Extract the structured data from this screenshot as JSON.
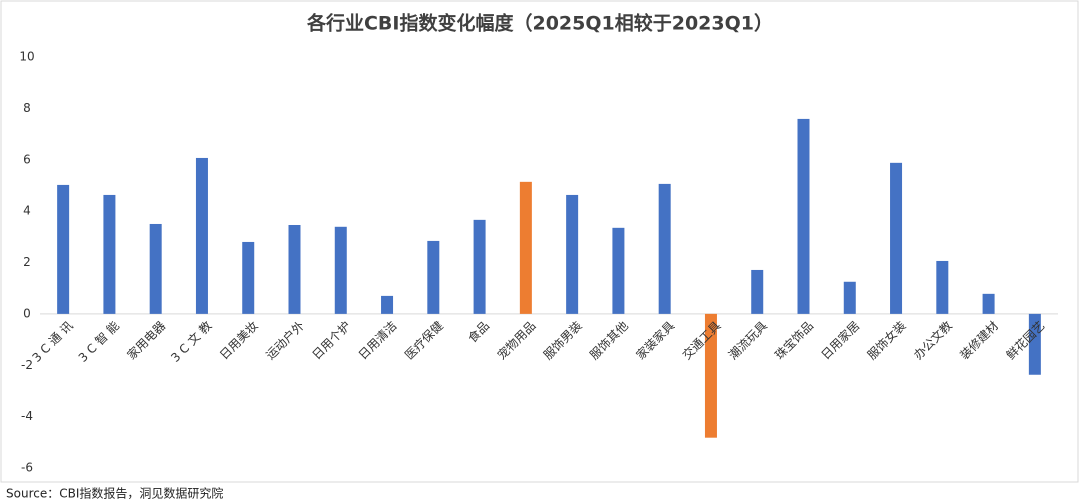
{
  "chart_data": {
    "type": "bar",
    "title": "各行业CBI指数变化幅度（2025Q1相较于2023Q1）",
    "categories": [
      "3 C 通 讯",
      "3 C 智 能",
      "家用电器",
      "3 C 文 教",
      "日用美妆",
      "运动户外",
      "日用个护",
      "日用清洁",
      "医疗保健",
      "食品",
      "宠物用品",
      "服饰男装",
      "服饰其他",
      "家装家具",
      "交通工具",
      "潮流玩具",
      "珠宝饰品",
      "日用家居",
      "服饰女装",
      "办公文教",
      "装修建材",
      "鲜花园艺"
    ],
    "values": [
      5.02,
      4.63,
      3.5,
      6.07,
      2.8,
      3.46,
      3.39,
      0.7,
      2.84,
      3.66,
      5.14,
      4.63,
      3.35,
      5.06,
      -4.82,
      1.71,
      7.59,
      1.25,
      5.88,
      2.06,
      0.78,
      -2.37
    ],
    "colors": [
      "#4472c4",
      "#4472c4",
      "#4472c4",
      "#4472c4",
      "#4472c4",
      "#4472c4",
      "#4472c4",
      "#4472c4",
      "#4472c4",
      "#4472c4",
      "#ed7d31",
      "#4472c4",
      "#4472c4",
      "#4472c4",
      "#ed7d31",
      "#4472c4",
      "#4472c4",
      "#4472c4",
      "#4472c4",
      "#4472c4",
      "#4472c4",
      "#4472c4"
    ],
    "ylim": [
      -6,
      10
    ],
    "yticks": [
      -6,
      -4,
      -2,
      0,
      2,
      4,
      6,
      8,
      10
    ],
    "source": "Source：CBI指数报告，洞见数据研究院"
  }
}
